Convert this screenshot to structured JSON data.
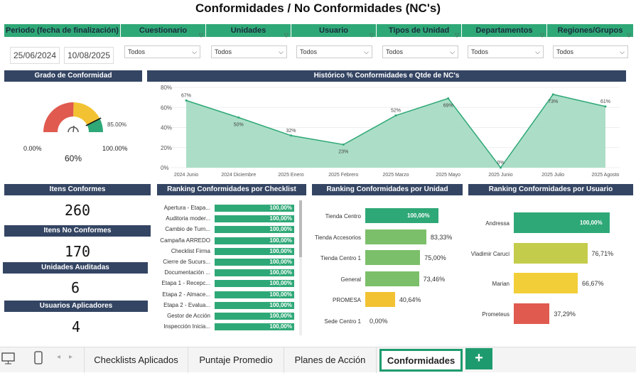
{
  "title": "Conformidades / No Conformidades (NC's)",
  "filters": [
    {
      "label": "Periodo (fecha de finalización)"
    },
    {
      "label": "Cuestionario",
      "value": "Todos"
    },
    {
      "label": "Unidades",
      "value": "Todos"
    },
    {
      "label": "Usuario",
      "value": "Todos"
    },
    {
      "label": "Tipos de Unidad",
      "value": "Todos"
    },
    {
      "label": "Departamentos",
      "value": "Todos"
    },
    {
      "label": "Regiones/Grupos",
      "value": "Todos"
    }
  ],
  "dates": {
    "start": "25/06/2024",
    "end": "10/08/2025"
  },
  "gauge": {
    "title": "Grado de Conformidad",
    "value": "60%",
    "min": "0.00%",
    "max": "100.00%",
    "target": "85.00%",
    "value_fraction": 0.6,
    "target_fraction": 0.85
  },
  "chart_data": {
    "type": "area",
    "title": "Histórico % Conformidades e Qtde de NC's",
    "categories": [
      "2024 Junio",
      "2024 Diciembre",
      "2025 Enero",
      "2025 Febrero",
      "2025 Marzo",
      "2025 Mayo",
      "2025 Junio",
      "2025 Julio",
      "2025 Agosto"
    ],
    "values": [
      67,
      50,
      32,
      23,
      52,
      69,
      0,
      73,
      61
    ],
    "data_labels": [
      "67%",
      "50%",
      "32%",
      "23%",
      "52%",
      "69%",
      "0%",
      "73%",
      "61%"
    ],
    "yticks": [
      "0%",
      "20%",
      "40%",
      "60%",
      "80%"
    ],
    "ylim": [
      0,
      80
    ],
    "color": "#2fa877"
  },
  "kpis": [
    {
      "label": "Itens Conformes",
      "value": "260"
    },
    {
      "label": "Itens No Conformes",
      "value": "170"
    },
    {
      "label": "Unidades Auditadas",
      "value": "6"
    },
    {
      "label": "Usuarios Aplicadores",
      "value": "4"
    }
  ],
  "checklist": {
    "title": "Ranking Conformidades por Checklist",
    "items": [
      {
        "label": "Apertura - Etapa...",
        "value": "100,00%",
        "fraction": 1
      },
      {
        "label": "Auditoria moder...",
        "value": "100,00%",
        "fraction": 1
      },
      {
        "label": "Cambio de Turn...",
        "value": "100,00%",
        "fraction": 1
      },
      {
        "label": "Campaña ARREDO",
        "value": "100,00%",
        "fraction": 1
      },
      {
        "label": "Checklist Firma",
        "value": "100,00%",
        "fraction": 1
      },
      {
        "label": "Cierre de Sucurs...",
        "value": "100,00%",
        "fraction": 1
      },
      {
        "label": "Documentación ...",
        "value": "100,00%",
        "fraction": 1
      },
      {
        "label": "Etapa 1 - Recepc...",
        "value": "100,00%",
        "fraction": 1
      },
      {
        "label": "Etapa 2 - Almace...",
        "value": "100,00%",
        "fraction": 1
      },
      {
        "label": "Etapa 2 - Evalua...",
        "value": "100,00%",
        "fraction": 1
      },
      {
        "label": "Gestor de Acción",
        "value": "100,00%",
        "fraction": 1
      },
      {
        "label": "Inspección Inicia...",
        "value": "100,00%",
        "fraction": 1
      }
    ]
  },
  "unidad": {
    "title": "Ranking Conformidades por Unidad",
    "items": [
      {
        "label": "Tienda Centro",
        "value": "100,00%",
        "fraction": 1.0,
        "color": "#2fa877",
        "inside": true
      },
      {
        "label": "Tienda Accesorios",
        "value": "83,33%",
        "fraction": 0.8333,
        "color": "#7cbf6a",
        "inside": false
      },
      {
        "label": "Tienda Centro 1",
        "value": "75,00%",
        "fraction": 0.75,
        "color": "#7cbf6a",
        "inside": false
      },
      {
        "label": "General",
        "value": "73,46%",
        "fraction": 0.7346,
        "color": "#7cbf6a",
        "inside": false
      },
      {
        "label": "PROMESA",
        "value": "40,64%",
        "fraction": 0.4064,
        "color": "#f2c233",
        "inside": false
      },
      {
        "label": "Sede Centro 1",
        "value": "0,00%",
        "fraction": 0,
        "color": "#e05a4f",
        "inside": false
      }
    ]
  },
  "usuario": {
    "title": "Ranking Conformidades por Usuario",
    "items": [
      {
        "label": "Andressa",
        "value": "100,00%",
        "fraction": 1.0,
        "color": "#2fa877",
        "inside": true
      },
      {
        "label": "Vladimir Caruci",
        "value": "76,71%",
        "fraction": 0.7671,
        "color": "#c4cc4c",
        "inside": false
      },
      {
        "label": "Marian",
        "value": "66,67%",
        "fraction": 0.6667,
        "color": "#f2cf38",
        "inside": false
      },
      {
        "label": "Prometeus",
        "value": "37,29%",
        "fraction": 0.3729,
        "color": "#e05a4f",
        "inside": false
      }
    ]
  },
  "tabs": [
    {
      "label": "Checklists Aplicados"
    },
    {
      "label": "Puntaje Promedio"
    },
    {
      "label": "Planes de Acción"
    },
    {
      "label": "Conformidades",
      "active": true
    }
  ],
  "add_tab": "+"
}
